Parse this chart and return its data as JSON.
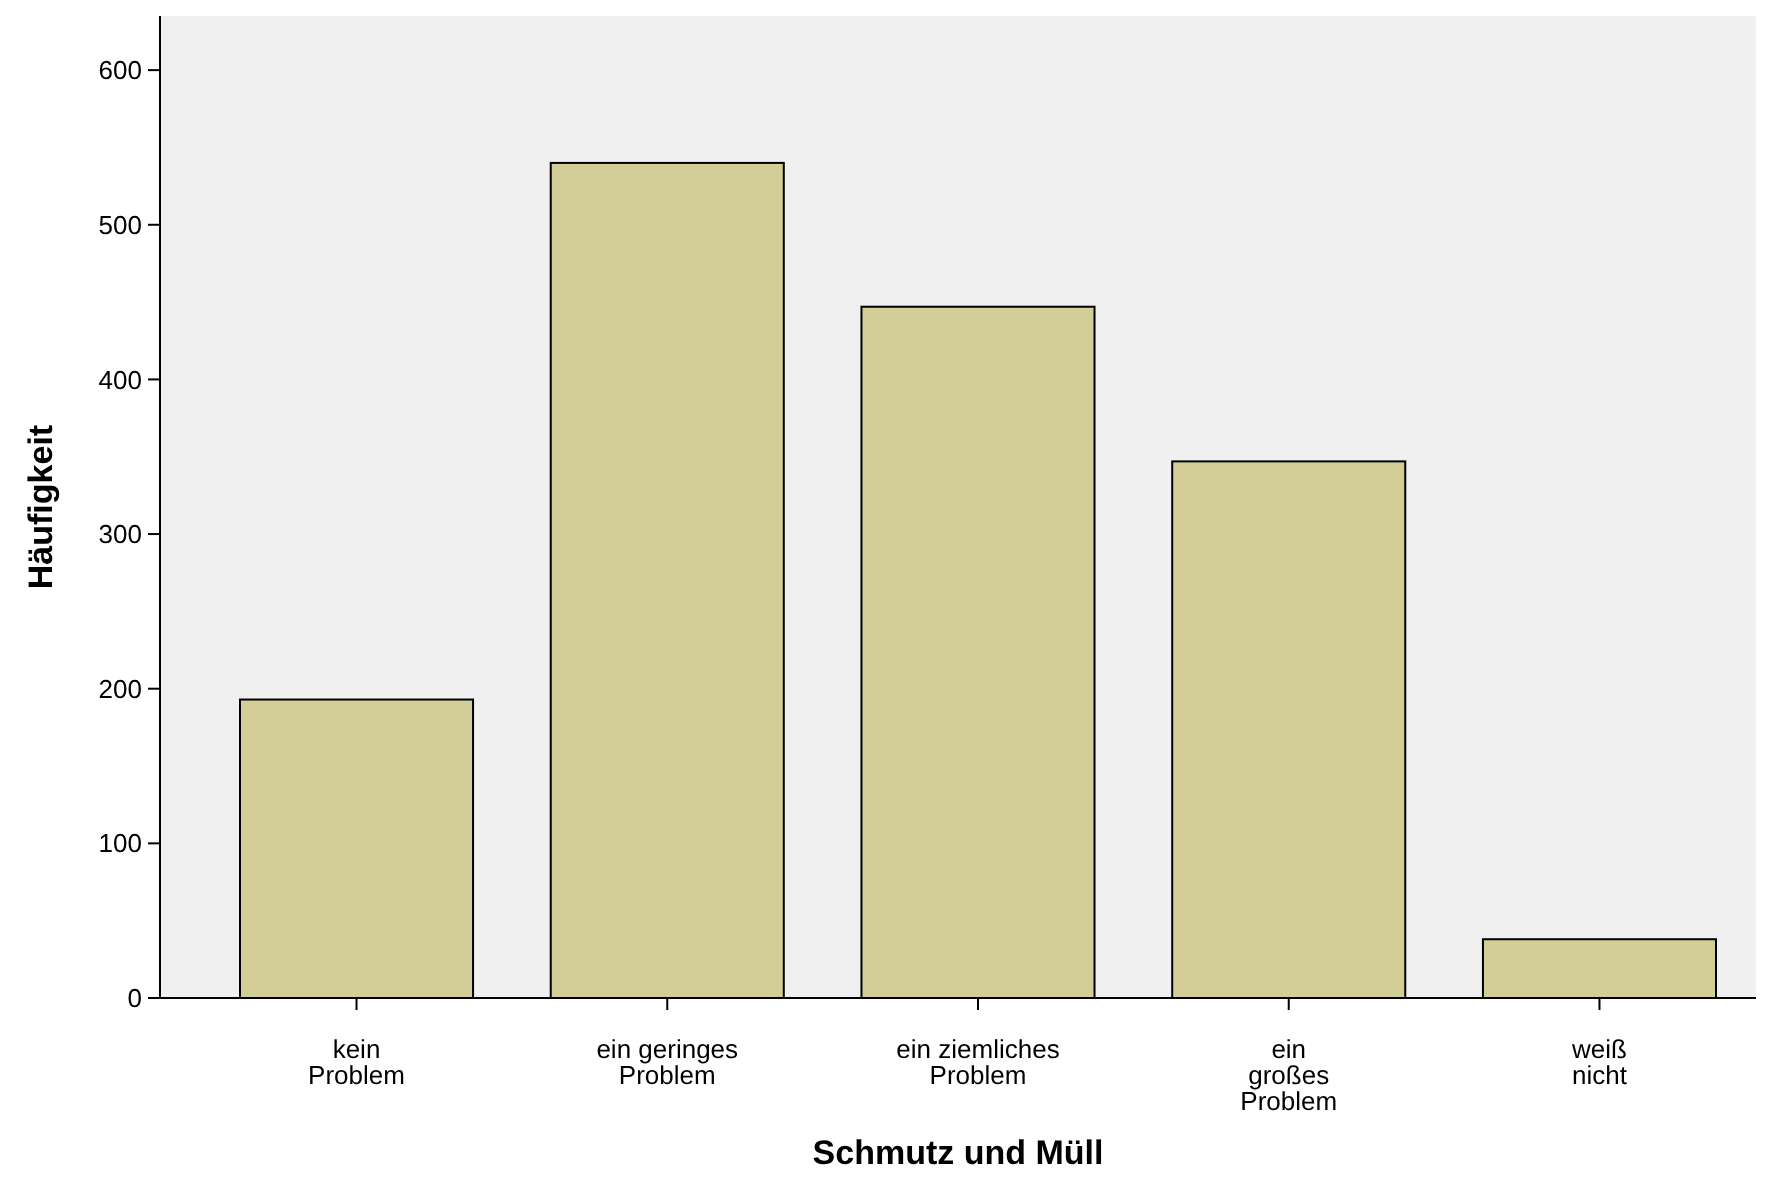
{
  "chart_data": {
    "type": "bar",
    "xlabel": "Schmutz und Müll",
    "ylabel": "Häufigkeit",
    "categories": [
      "kein\nProblem",
      "ein geringes\nProblem",
      "ein ziemliches\nProblem",
      "ein\ngroßes\nProblem",
      "weiß\nnicht"
    ],
    "values": [
      193,
      540,
      447,
      347,
      38
    ],
    "color": "#d3ce97",
    "ylim": [
      0,
      635
    ],
    "yticks": [
      0,
      100,
      200,
      300,
      400,
      500,
      600
    ],
    "grid": false
  }
}
